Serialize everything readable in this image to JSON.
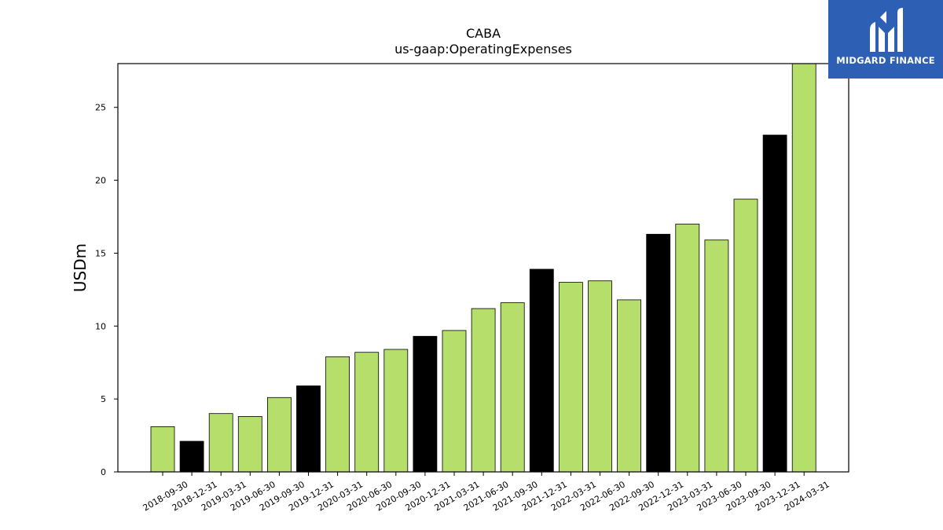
{
  "brand": {
    "name": "MIDGARD FINANCE",
    "bg_color": "#2d5fb5",
    "icon": "midgard-logo-icon"
  },
  "colors": {
    "bar_default": "#b5de6a",
    "bar_highlight": "#000000",
    "edge": "#000000"
  },
  "chart_data": {
    "type": "bar",
    "title": "CABA",
    "subtitle": "us-gaap:OperatingExpenses",
    "xlabel": "",
    "ylabel": "USDm",
    "ylim": [
      0,
      28
    ],
    "yticks": [
      0,
      5,
      10,
      15,
      20,
      25
    ],
    "grid": false,
    "categories": [
      "2018-09-30",
      "2018-12-31",
      "2019-03-31",
      "2019-06-30",
      "2019-09-30",
      "2019-12-31",
      "2020-03-31",
      "2020-06-30",
      "2020-09-30",
      "2020-12-31",
      "2021-03-31",
      "2021-06-30",
      "2021-09-30",
      "2021-12-31",
      "2022-03-31",
      "2022-06-30",
      "2022-09-30",
      "2022-12-31",
      "2023-03-31",
      "2023-06-30",
      "2023-09-30",
      "2023-12-31",
      "2024-03-31"
    ],
    "values": [
      3.1,
      2.1,
      4.0,
      3.8,
      5.1,
      5.9,
      7.9,
      8.2,
      8.4,
      9.3,
      9.7,
      11.2,
      11.6,
      13.9,
      13.0,
      13.1,
      11.8,
      16.3,
      17.0,
      15.9,
      18.7,
      23.1,
      28.0
    ],
    "highlight": [
      false,
      true,
      false,
      false,
      false,
      true,
      false,
      false,
      false,
      true,
      false,
      false,
      false,
      true,
      false,
      false,
      false,
      true,
      false,
      false,
      false,
      true,
      false
    ]
  }
}
